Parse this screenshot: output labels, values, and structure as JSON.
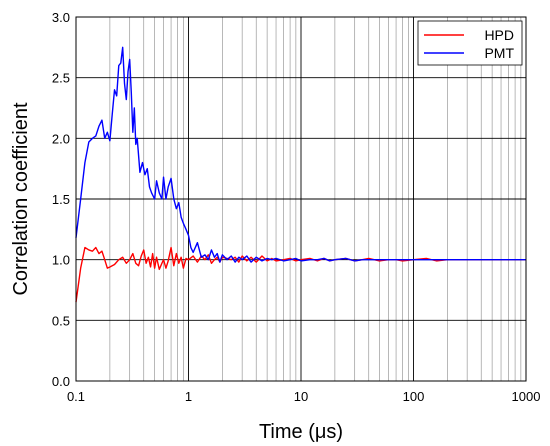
{
  "chart_data": {
    "type": "line",
    "xlabel": "Time (μs)",
    "ylabel": "Correlation coefficient",
    "xscale": "log",
    "xlim": [
      0.1,
      1000
    ],
    "ylim": [
      0.0,
      3.0
    ],
    "grid": true,
    "legend_position": "top-right",
    "x_ticks": [
      0.1,
      1,
      10,
      100,
      1000
    ],
    "x_tick_labels": [
      "0.1",
      "1",
      "10",
      "100",
      "1000"
    ],
    "y_ticks": [
      0.0,
      0.5,
      1.0,
      1.5,
      2.0,
      2.5,
      3.0
    ],
    "y_tick_labels": [
      "0.0",
      "0.5",
      "1.0",
      "1.5",
      "2.0",
      "2.5",
      "3.0"
    ],
    "series": [
      {
        "name": "HPD",
        "color": "#ff0000",
        "x": [
          0.1,
          0.11,
          0.12,
          0.13,
          0.14,
          0.15,
          0.16,
          0.17,
          0.18,
          0.19,
          0.2,
          0.22,
          0.24,
          0.26,
          0.28,
          0.3,
          0.32,
          0.34,
          0.36,
          0.38,
          0.4,
          0.42,
          0.44,
          0.46,
          0.48,
          0.5,
          0.52,
          0.55,
          0.58,
          0.6,
          0.63,
          0.66,
          0.7,
          0.74,
          0.78,
          0.82,
          0.86,
          0.9,
          0.95,
          1.0,
          1.1,
          1.2,
          1.3,
          1.4,
          1.5,
          1.6,
          1.7,
          1.8,
          1.9,
          2.0,
          2.2,
          2.4,
          2.6,
          2.8,
          3.0,
          3.3,
          3.6,
          4.0,
          4.5,
          5.0,
          5.5,
          6.0,
          7.0,
          8.0,
          9.0,
          10,
          12,
          14,
          16,
          18,
          20,
          25,
          30,
          35,
          40,
          50,
          60,
          70,
          80,
          100,
          130,
          160,
          200,
          250,
          300,
          400,
          500,
          700,
          1000
        ],
        "y": [
          0.65,
          0.93,
          1.1,
          1.08,
          1.07,
          1.1,
          1.05,
          1.07,
          1.0,
          0.93,
          0.94,
          0.96,
          1.0,
          1.02,
          0.97,
          1.0,
          1.05,
          0.97,
          0.95,
          1.03,
          1.08,
          0.97,
          1.02,
          0.94,
          1.05,
          0.93,
          1.02,
          0.92,
          0.97,
          1.0,
          0.93,
          0.99,
          1.1,
          0.95,
          1.05,
          0.97,
          1.02,
          0.93,
          1.01,
          1.0,
          1.03,
          0.98,
          1.03,
          1.0,
          1.04,
          0.97,
          1.0,
          1.02,
          0.98,
          1.02,
          1.01,
          1.0,
          1.02,
          0.98,
          1.03,
          0.99,
          1.02,
          0.98,
          1.03,
          0.99,
          1.01,
          0.99,
          1.0,
          1.01,
          0.99,
          1.0,
          1.01,
          0.99,
          1.01,
          0.99,
          1.0,
          1.01,
          0.99,
          1.0,
          1.01,
          0.99,
          1.0,
          1.0,
          0.99,
          1.0,
          1.01,
          0.99,
          1.0,
          1.0,
          1.0,
          1.0,
          1.0,
          1.0,
          1.0
        ]
      },
      {
        "name": "PMT",
        "color": "#0000ff",
        "x": [
          0.1,
          0.11,
          0.12,
          0.13,
          0.14,
          0.15,
          0.16,
          0.17,
          0.18,
          0.19,
          0.2,
          0.21,
          0.22,
          0.23,
          0.24,
          0.25,
          0.26,
          0.27,
          0.28,
          0.29,
          0.3,
          0.31,
          0.32,
          0.33,
          0.34,
          0.35,
          0.37,
          0.39,
          0.41,
          0.43,
          0.45,
          0.47,
          0.5,
          0.52,
          0.55,
          0.58,
          0.6,
          0.63,
          0.66,
          0.7,
          0.74,
          0.78,
          0.82,
          0.86,
          0.9,
          0.95,
          1.0,
          1.05,
          1.1,
          1.2,
          1.3,
          1.4,
          1.5,
          1.6,
          1.7,
          1.8,
          1.9,
          2.0,
          2.2,
          2.4,
          2.6,
          2.8,
          3.0,
          3.3,
          3.6,
          4.0,
          4.5,
          5.0,
          5.5,
          6.0,
          7.0,
          8.0,
          9.0,
          10,
          12,
          14,
          16,
          18,
          20,
          25,
          30,
          35,
          40,
          50,
          60,
          70,
          80,
          100,
          130,
          160,
          200,
          250,
          300,
          400,
          500,
          700,
          1000
        ],
        "y": [
          1.18,
          1.5,
          1.8,
          1.97,
          2.0,
          2.02,
          2.1,
          2.15,
          2.0,
          2.05,
          1.98,
          2.2,
          2.4,
          2.35,
          2.6,
          2.62,
          2.75,
          2.45,
          2.32,
          2.55,
          2.65,
          2.38,
          2.05,
          2.25,
          1.95,
          2.0,
          1.72,
          1.8,
          1.7,
          1.75,
          1.6,
          1.55,
          1.5,
          1.65,
          1.55,
          1.5,
          1.68,
          1.5,
          1.6,
          1.67,
          1.5,
          1.42,
          1.47,
          1.35,
          1.3,
          1.25,
          1.2,
          1.1,
          1.06,
          1.14,
          1.02,
          1.04,
          1.0,
          1.08,
          1.02,
          1.05,
          0.98,
          1.04,
          1.0,
          1.03,
          0.98,
          1.02,
          1.0,
          1.03,
          0.98,
          1.02,
          0.99,
          1.01,
          1.0,
          1.01,
          0.99,
          1.0,
          1.01,
          0.99,
          1.0,
          1.0,
          1.01,
          0.99,
          1.0,
          1.01,
          0.99,
          1.0,
          1.0,
          1.0,
          1.0,
          1.0,
          1.0,
          1.0,
          1.0,
          1.0,
          1.0,
          1.0,
          1.0,
          1.0,
          1.0,
          1.0,
          1.0
        ]
      }
    ]
  }
}
